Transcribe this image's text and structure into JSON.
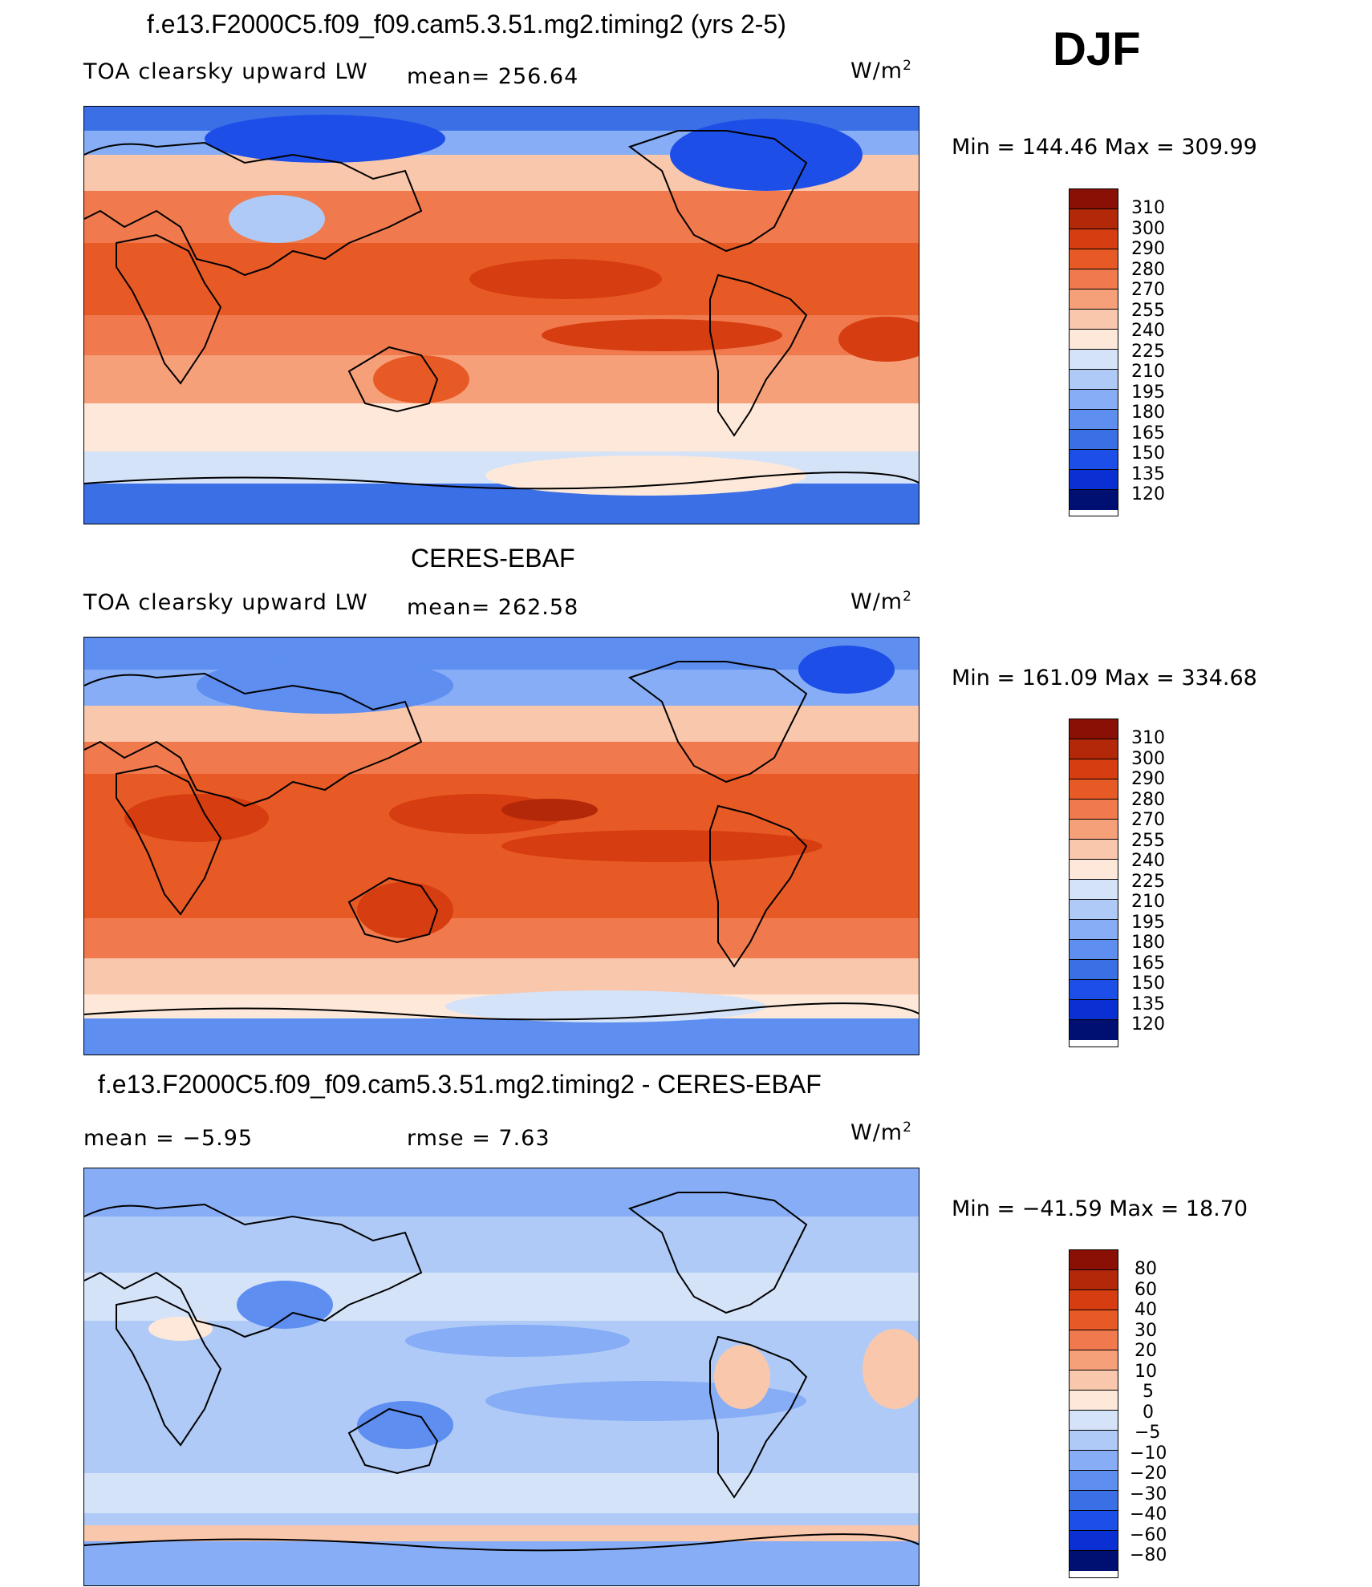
{
  "season": "DJF",
  "colors": {
    "main_scale": [
      "#000f72",
      "#001aa6",
      "#0a2fd2",
      "#1d4fe8",
      "#3b6fe6",
      "#5d8ef0",
      "#86adf5",
      "#afcaf7",
      "#d4e3f8",
      "#fde8d9",
      "#f9c7ac",
      "#f6a07a",
      "#f07a4d",
      "#e85a25",
      "#d63d10",
      "#b4280a",
      "#8a0f04"
    ],
    "diff_scale": [
      "#000f72",
      "#001aa6",
      "#0a2fd2",
      "#1d4fe8",
      "#3b6fe6",
      "#5d8ef0",
      "#86adf5",
      "#afcaf7",
      "#d4e3f8",
      "#fde8d9",
      "#f9c7ac",
      "#f6a07a",
      "#f07a4d",
      "#e85a25",
      "#d63d10",
      "#b4280a",
      "#8a0f04"
    ],
    "land_outline": "#000000"
  },
  "panels": [
    {
      "title": "f.e13.F2000C5.f09_f09.cam5.3.51.mg2.timing2 (yrs 2-5)",
      "left_label": "TOA clearsky upward LW",
      "center_label": "mean=  256.64",
      "units": "W/m",
      "units_sup": "2",
      "minmax": "Min  =  144.46  Max  =  309.99",
      "colorbar_labels": [
        "310",
        "300",
        "290",
        "280",
        "270",
        "255",
        "240",
        "225",
        "210",
        "195",
        "180",
        "165",
        "150",
        "135",
        "120"
      ]
    },
    {
      "title": "CERES-EBAF",
      "left_label": "TOA clearsky upward LW",
      "center_label": "mean=  262.58",
      "units": "W/m",
      "units_sup": "2",
      "minmax": "Min  =  161.09  Max  =  334.68",
      "colorbar_labels": [
        "310",
        "300",
        "290",
        "280",
        "270",
        "255",
        "240",
        "225",
        "210",
        "195",
        "180",
        "165",
        "150",
        "135",
        "120"
      ]
    },
    {
      "title": "f.e13.F2000C5.f09_f09.cam5.3.51.mg2.timing2 - CERES-EBAF",
      "left_label": "mean  =    −5.95",
      "center_label": "rmse  =     7.63",
      "units": "W/m",
      "units_sup": "2",
      "minmax": "Min  =  −41.59  Max  =    18.70",
      "colorbar_labels": [
        "80",
        "60",
        "40",
        "30",
        "20",
        "10",
        "5",
        "0",
        "−5",
        "−10",
        "−20",
        "−30",
        "−40",
        "−60",
        "−80"
      ]
    }
  ]
}
